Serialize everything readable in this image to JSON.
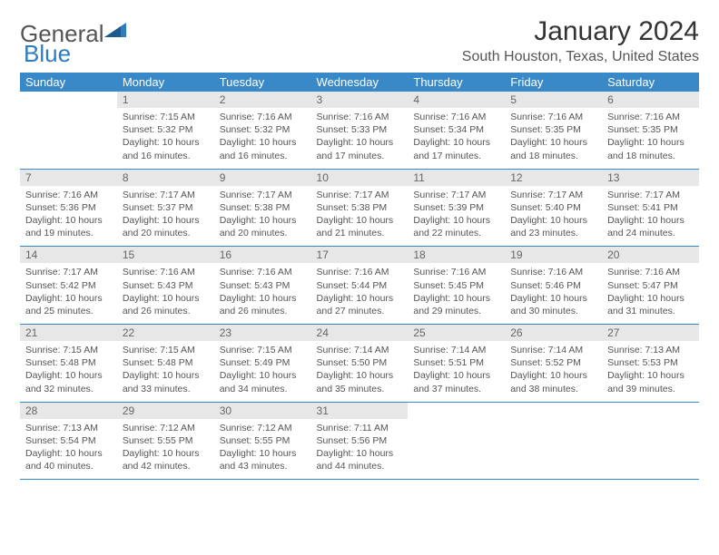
{
  "logo": {
    "part1": "General",
    "part2": "Blue"
  },
  "title": "January 2024",
  "location": "South Houston, Texas, United States",
  "day_headers": [
    "Sunday",
    "Monday",
    "Tuesday",
    "Wednesday",
    "Thursday",
    "Friday",
    "Saturday"
  ],
  "colors": {
    "header_bg": "#3989c9",
    "daynum_bg": "#e7e7e7",
    "row_border": "#3989c9",
    "logo_accent": "#2d7cc1"
  },
  "weeks": [
    [
      null,
      {
        "n": "1",
        "sunrise": "7:15 AM",
        "sunset": "5:32 PM",
        "daylight": "10 hours and 16 minutes."
      },
      {
        "n": "2",
        "sunrise": "7:16 AM",
        "sunset": "5:32 PM",
        "daylight": "10 hours and 16 minutes."
      },
      {
        "n": "3",
        "sunrise": "7:16 AM",
        "sunset": "5:33 PM",
        "daylight": "10 hours and 17 minutes."
      },
      {
        "n": "4",
        "sunrise": "7:16 AM",
        "sunset": "5:34 PM",
        "daylight": "10 hours and 17 minutes."
      },
      {
        "n": "5",
        "sunrise": "7:16 AM",
        "sunset": "5:35 PM",
        "daylight": "10 hours and 18 minutes."
      },
      {
        "n": "6",
        "sunrise": "7:16 AM",
        "sunset": "5:35 PM",
        "daylight": "10 hours and 18 minutes."
      }
    ],
    [
      {
        "n": "7",
        "sunrise": "7:16 AM",
        "sunset": "5:36 PM",
        "daylight": "10 hours and 19 minutes."
      },
      {
        "n": "8",
        "sunrise": "7:17 AM",
        "sunset": "5:37 PM",
        "daylight": "10 hours and 20 minutes."
      },
      {
        "n": "9",
        "sunrise": "7:17 AM",
        "sunset": "5:38 PM",
        "daylight": "10 hours and 20 minutes."
      },
      {
        "n": "10",
        "sunrise": "7:17 AM",
        "sunset": "5:38 PM",
        "daylight": "10 hours and 21 minutes."
      },
      {
        "n": "11",
        "sunrise": "7:17 AM",
        "sunset": "5:39 PM",
        "daylight": "10 hours and 22 minutes."
      },
      {
        "n": "12",
        "sunrise": "7:17 AM",
        "sunset": "5:40 PM",
        "daylight": "10 hours and 23 minutes."
      },
      {
        "n": "13",
        "sunrise": "7:17 AM",
        "sunset": "5:41 PM",
        "daylight": "10 hours and 24 minutes."
      }
    ],
    [
      {
        "n": "14",
        "sunrise": "7:17 AM",
        "sunset": "5:42 PM",
        "daylight": "10 hours and 25 minutes."
      },
      {
        "n": "15",
        "sunrise": "7:16 AM",
        "sunset": "5:43 PM",
        "daylight": "10 hours and 26 minutes."
      },
      {
        "n": "16",
        "sunrise": "7:16 AM",
        "sunset": "5:43 PM",
        "daylight": "10 hours and 26 minutes."
      },
      {
        "n": "17",
        "sunrise": "7:16 AM",
        "sunset": "5:44 PM",
        "daylight": "10 hours and 27 minutes."
      },
      {
        "n": "18",
        "sunrise": "7:16 AM",
        "sunset": "5:45 PM",
        "daylight": "10 hours and 29 minutes."
      },
      {
        "n": "19",
        "sunrise": "7:16 AM",
        "sunset": "5:46 PM",
        "daylight": "10 hours and 30 minutes."
      },
      {
        "n": "20",
        "sunrise": "7:16 AM",
        "sunset": "5:47 PM",
        "daylight": "10 hours and 31 minutes."
      }
    ],
    [
      {
        "n": "21",
        "sunrise": "7:15 AM",
        "sunset": "5:48 PM",
        "daylight": "10 hours and 32 minutes."
      },
      {
        "n": "22",
        "sunrise": "7:15 AM",
        "sunset": "5:48 PM",
        "daylight": "10 hours and 33 minutes."
      },
      {
        "n": "23",
        "sunrise": "7:15 AM",
        "sunset": "5:49 PM",
        "daylight": "10 hours and 34 minutes."
      },
      {
        "n": "24",
        "sunrise": "7:14 AM",
        "sunset": "5:50 PM",
        "daylight": "10 hours and 35 minutes."
      },
      {
        "n": "25",
        "sunrise": "7:14 AM",
        "sunset": "5:51 PM",
        "daylight": "10 hours and 37 minutes."
      },
      {
        "n": "26",
        "sunrise": "7:14 AM",
        "sunset": "5:52 PM",
        "daylight": "10 hours and 38 minutes."
      },
      {
        "n": "27",
        "sunrise": "7:13 AM",
        "sunset": "5:53 PM",
        "daylight": "10 hours and 39 minutes."
      }
    ],
    [
      {
        "n": "28",
        "sunrise": "7:13 AM",
        "sunset": "5:54 PM",
        "daylight": "10 hours and 40 minutes."
      },
      {
        "n": "29",
        "sunrise": "7:12 AM",
        "sunset": "5:55 PM",
        "daylight": "10 hours and 42 minutes."
      },
      {
        "n": "30",
        "sunrise": "7:12 AM",
        "sunset": "5:55 PM",
        "daylight": "10 hours and 43 minutes."
      },
      {
        "n": "31",
        "sunrise": "7:11 AM",
        "sunset": "5:56 PM",
        "daylight": "10 hours and 44 minutes."
      },
      null,
      null,
      null
    ]
  ],
  "labels": {
    "sunrise": "Sunrise:",
    "sunset": "Sunset:",
    "daylight": "Daylight:"
  }
}
